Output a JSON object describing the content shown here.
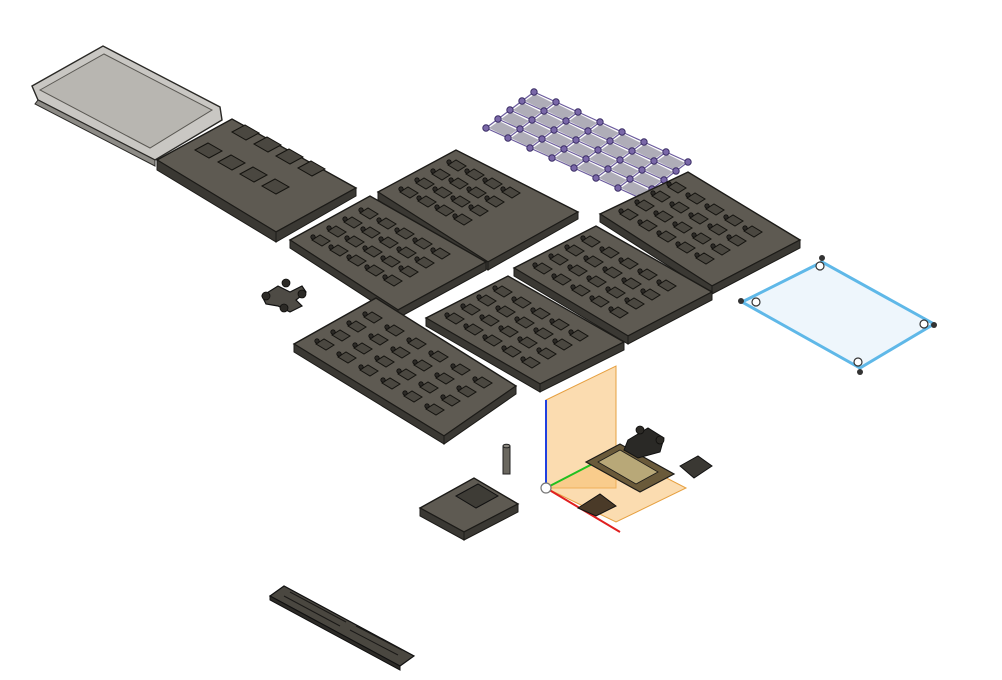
{
  "viewport": {
    "background": "#ffffff",
    "plate_color": "#5e5a52",
    "plate_edge_color": "#1c1b18",
    "selection_color": "#5fb8e8",
    "sketch_color": "#6a5a9c",
    "axis_colors": {
      "x": "#e02020",
      "y": "#20c020",
      "z": "#2040e0"
    },
    "origin_plane_color": "#f8c070"
  },
  "objects": [
    {
      "id": "lid",
      "icon": "tray-lid-icon"
    },
    {
      "id": "base-tray",
      "icon": "tray-icon"
    },
    {
      "id": "sketch-grid",
      "icon": "sketch-icon"
    },
    {
      "id": "plate-top-1",
      "icon": "plate-icon"
    },
    {
      "id": "plate-mid-left",
      "icon": "plate-icon"
    },
    {
      "id": "plate-mid-center",
      "icon": "plate-icon"
    },
    {
      "id": "plate-right",
      "icon": "plate-icon"
    },
    {
      "id": "plate-bottom-left",
      "icon": "plate-icon"
    },
    {
      "id": "plate-bottom-center",
      "icon": "plate-icon"
    },
    {
      "id": "selected-outline",
      "icon": "selection-icon"
    },
    {
      "id": "bowtie-part",
      "icon": "part-icon"
    },
    {
      "id": "pin",
      "icon": "pin-icon"
    },
    {
      "id": "small-block",
      "icon": "block-icon"
    },
    {
      "id": "label-bar",
      "icon": "embossed-text-icon"
    },
    {
      "id": "origin",
      "icon": "origin-icon"
    }
  ]
}
